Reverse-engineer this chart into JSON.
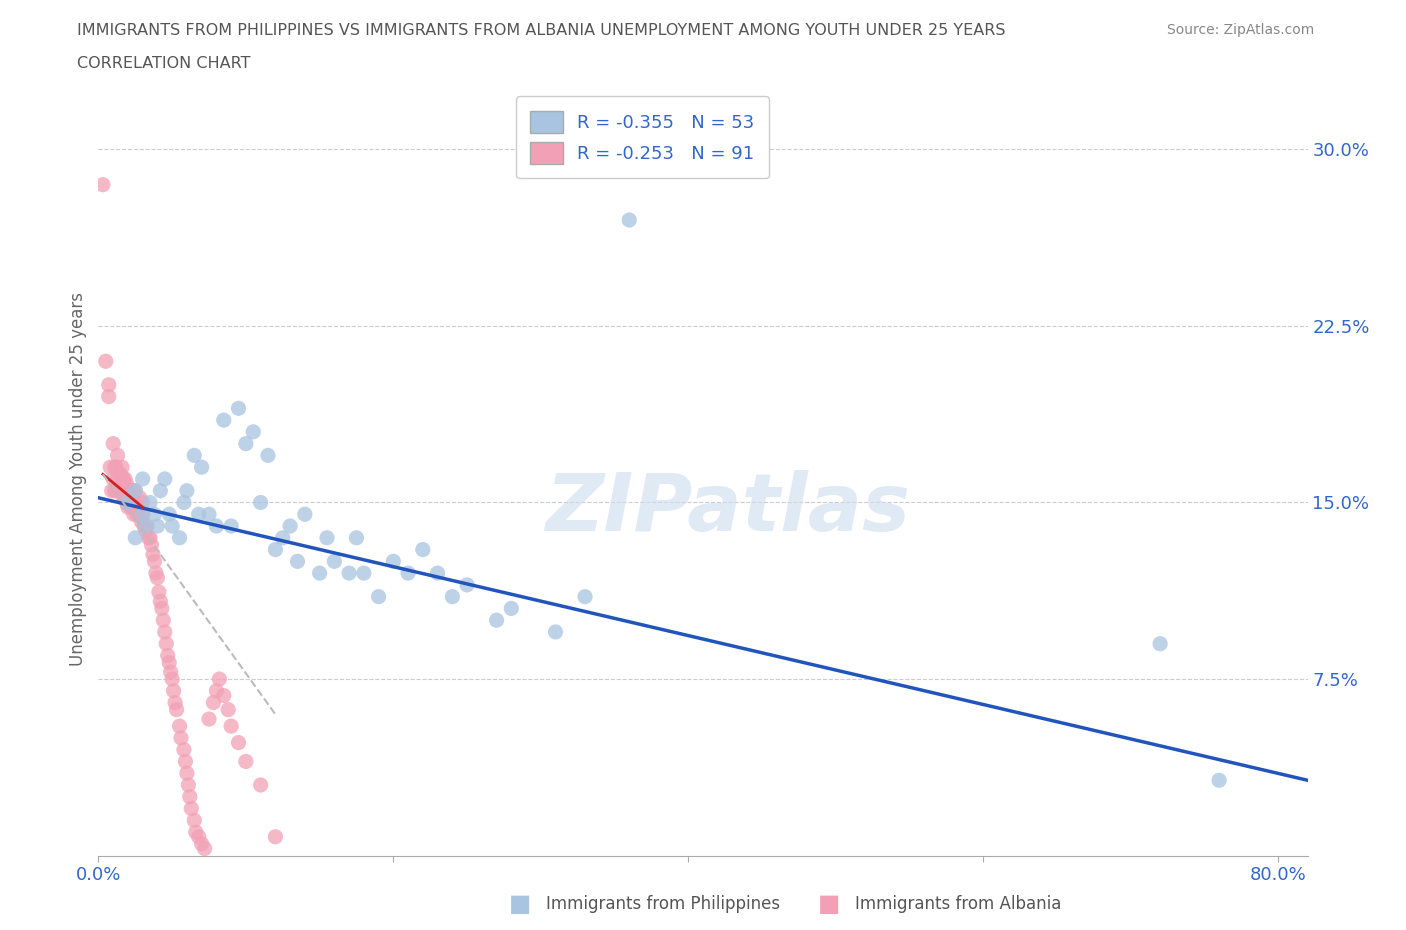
{
  "title_line1": "IMMIGRANTS FROM PHILIPPINES VS IMMIGRANTS FROM ALBANIA UNEMPLOYMENT AMONG YOUTH UNDER 25 YEARS",
  "title_line2": "CORRELATION CHART",
  "source": "Source: ZipAtlas.com",
  "ylabel": "Unemployment Among Youth under 25 years",
  "watermark": "ZIPatlas",
  "xlim": [
    0.0,
    0.82
  ],
  "ylim": [
    0.0,
    0.32
  ],
  "philippines_color": "#a8c4e0",
  "albania_color": "#f2a0b5",
  "philippines_line_color": "#2255bb",
  "albania_line_color": "#cc2222",
  "albania_dashed_color": "#bbbbbb",
  "legend_r_philippines": "R = -0.355",
  "legend_n_philippines": "N = 53",
  "legend_r_albania": "R = -0.253",
  "legend_n_albania": "N = 91",
  "philippines_scatter_x": [
    0.02,
    0.025,
    0.025,
    0.03,
    0.03,
    0.032,
    0.035,
    0.038,
    0.04,
    0.042,
    0.045,
    0.048,
    0.05,
    0.055,
    0.058,
    0.06,
    0.065,
    0.068,
    0.07,
    0.075,
    0.08,
    0.085,
    0.09,
    0.095,
    0.1,
    0.105,
    0.11,
    0.115,
    0.12,
    0.125,
    0.13,
    0.135,
    0.14,
    0.15,
    0.155,
    0.16,
    0.17,
    0.175,
    0.18,
    0.19,
    0.2,
    0.21,
    0.22,
    0.23,
    0.24,
    0.25,
    0.27,
    0.28,
    0.31,
    0.33,
    0.36,
    0.72,
    0.76
  ],
  "philippines_scatter_y": [
    0.15,
    0.135,
    0.155,
    0.145,
    0.16,
    0.14,
    0.15,
    0.145,
    0.14,
    0.155,
    0.16,
    0.145,
    0.14,
    0.135,
    0.15,
    0.155,
    0.17,
    0.145,
    0.165,
    0.145,
    0.14,
    0.185,
    0.14,
    0.19,
    0.175,
    0.18,
    0.15,
    0.17,
    0.13,
    0.135,
    0.14,
    0.125,
    0.145,
    0.12,
    0.135,
    0.125,
    0.12,
    0.135,
    0.12,
    0.11,
    0.125,
    0.12,
    0.13,
    0.12,
    0.11,
    0.115,
    0.1,
    0.105,
    0.095,
    0.11,
    0.27,
    0.09,
    0.032
  ],
  "albania_scatter_x": [
    0.003,
    0.005,
    0.007,
    0.007,
    0.008,
    0.009,
    0.01,
    0.01,
    0.011,
    0.011,
    0.012,
    0.012,
    0.013,
    0.013,
    0.014,
    0.014,
    0.015,
    0.015,
    0.016,
    0.016,
    0.017,
    0.017,
    0.018,
    0.018,
    0.019,
    0.019,
    0.02,
    0.02,
    0.021,
    0.021,
    0.022,
    0.022,
    0.023,
    0.023,
    0.024,
    0.025,
    0.025,
    0.026,
    0.027,
    0.028,
    0.028,
    0.029,
    0.03,
    0.03,
    0.031,
    0.032,
    0.033,
    0.034,
    0.035,
    0.036,
    0.037,
    0.038,
    0.039,
    0.04,
    0.041,
    0.042,
    0.043,
    0.044,
    0.045,
    0.046,
    0.047,
    0.048,
    0.049,
    0.05,
    0.051,
    0.052,
    0.053,
    0.055,
    0.056,
    0.058,
    0.059,
    0.06,
    0.061,
    0.062,
    0.063,
    0.065,
    0.066,
    0.068,
    0.07,
    0.072,
    0.075,
    0.078,
    0.08,
    0.082,
    0.085,
    0.088,
    0.09,
    0.095,
    0.1,
    0.11,
    0.12
  ],
  "albania_scatter_y": [
    0.285,
    0.21,
    0.195,
    0.2,
    0.165,
    0.155,
    0.16,
    0.175,
    0.155,
    0.165,
    0.155,
    0.165,
    0.16,
    0.17,
    0.155,
    0.162,
    0.155,
    0.162,
    0.155,
    0.165,
    0.152,
    0.16,
    0.152,
    0.16,
    0.15,
    0.158,
    0.148,
    0.155,
    0.15,
    0.155,
    0.148,
    0.155,
    0.148,
    0.152,
    0.145,
    0.148,
    0.155,
    0.145,
    0.148,
    0.145,
    0.152,
    0.142,
    0.145,
    0.15,
    0.14,
    0.138,
    0.14,
    0.135,
    0.135,
    0.132,
    0.128,
    0.125,
    0.12,
    0.118,
    0.112,
    0.108,
    0.105,
    0.1,
    0.095,
    0.09,
    0.085,
    0.082,
    0.078,
    0.075,
    0.07,
    0.065,
    0.062,
    0.055,
    0.05,
    0.045,
    0.04,
    0.035,
    0.03,
    0.025,
    0.02,
    0.015,
    0.01,
    0.008,
    0.005,
    0.003,
    0.058,
    0.065,
    0.07,
    0.075,
    0.068,
    0.062,
    0.055,
    0.048,
    0.04,
    0.03,
    0.008
  ],
  "philippines_line_x": [
    0.0,
    0.82
  ],
  "philippines_line_y": [
    0.152,
    0.032
  ],
  "albania_solid_line_x": [
    0.003,
    0.03
  ],
  "albania_solid_line_y": [
    0.162,
    0.148
  ],
  "albania_dashed_line_x": [
    0.003,
    0.12
  ],
  "albania_dashed_line_y": [
    0.162,
    0.06
  ],
  "background_color": "#ffffff",
  "grid_color": "#cccccc",
  "title_color": "#555555",
  "axis_color": "#3366cc",
  "ylabel_color": "#666666"
}
